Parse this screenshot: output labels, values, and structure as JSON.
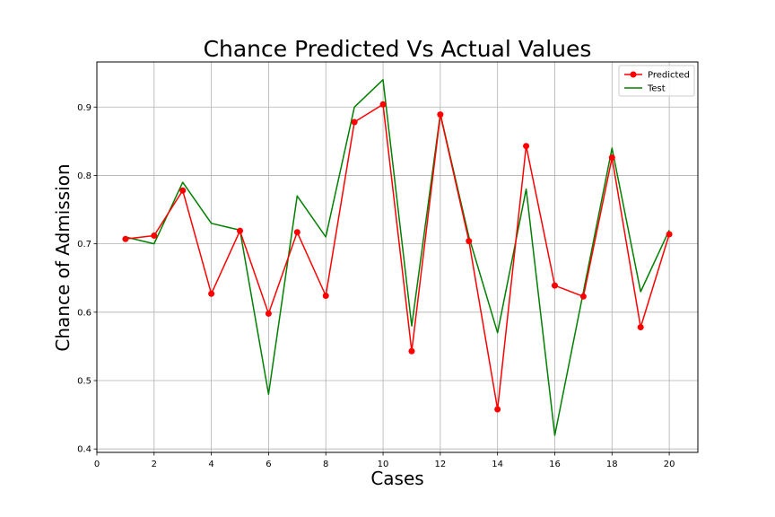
{
  "chart_data": {
    "type": "line",
    "title": "Chance Predicted Vs Actual Values",
    "xlabel": "Cases",
    "ylabel": "Chance of Admission",
    "xlim": [
      0,
      21
    ],
    "ylim": [
      0.395,
      0.966
    ],
    "xticks": [
      0,
      2,
      4,
      6,
      8,
      10,
      12,
      14,
      16,
      18,
      20
    ],
    "yticks": [
      0.4,
      0.5,
      0.6,
      0.7,
      0.8,
      0.9
    ],
    "grid": true,
    "legend_position": "top-right",
    "x": [
      1,
      2,
      3,
      4,
      5,
      6,
      7,
      8,
      9,
      10,
      11,
      12,
      13,
      14,
      15,
      16,
      17,
      18,
      19,
      20
    ],
    "series": [
      {
        "name": "Predicted",
        "color": "#ff0000",
        "marker": "circle",
        "values": [
          0.707,
          0.712,
          0.778,
          0.627,
          0.719,
          0.598,
          0.717,
          0.624,
          0.878,
          0.904,
          0.543,
          0.889,
          0.704,
          0.458,
          0.843,
          0.639,
          0.623,
          0.826,
          0.578,
          0.714
        ]
      },
      {
        "name": "Test",
        "color": "#008000",
        "marker": "none",
        "values": [
          0.71,
          0.7,
          0.79,
          0.73,
          0.72,
          0.48,
          0.77,
          0.71,
          0.9,
          0.94,
          0.58,
          0.89,
          0.71,
          0.57,
          0.78,
          0.42,
          0.63,
          0.84,
          0.63,
          0.72
        ]
      }
    ]
  }
}
